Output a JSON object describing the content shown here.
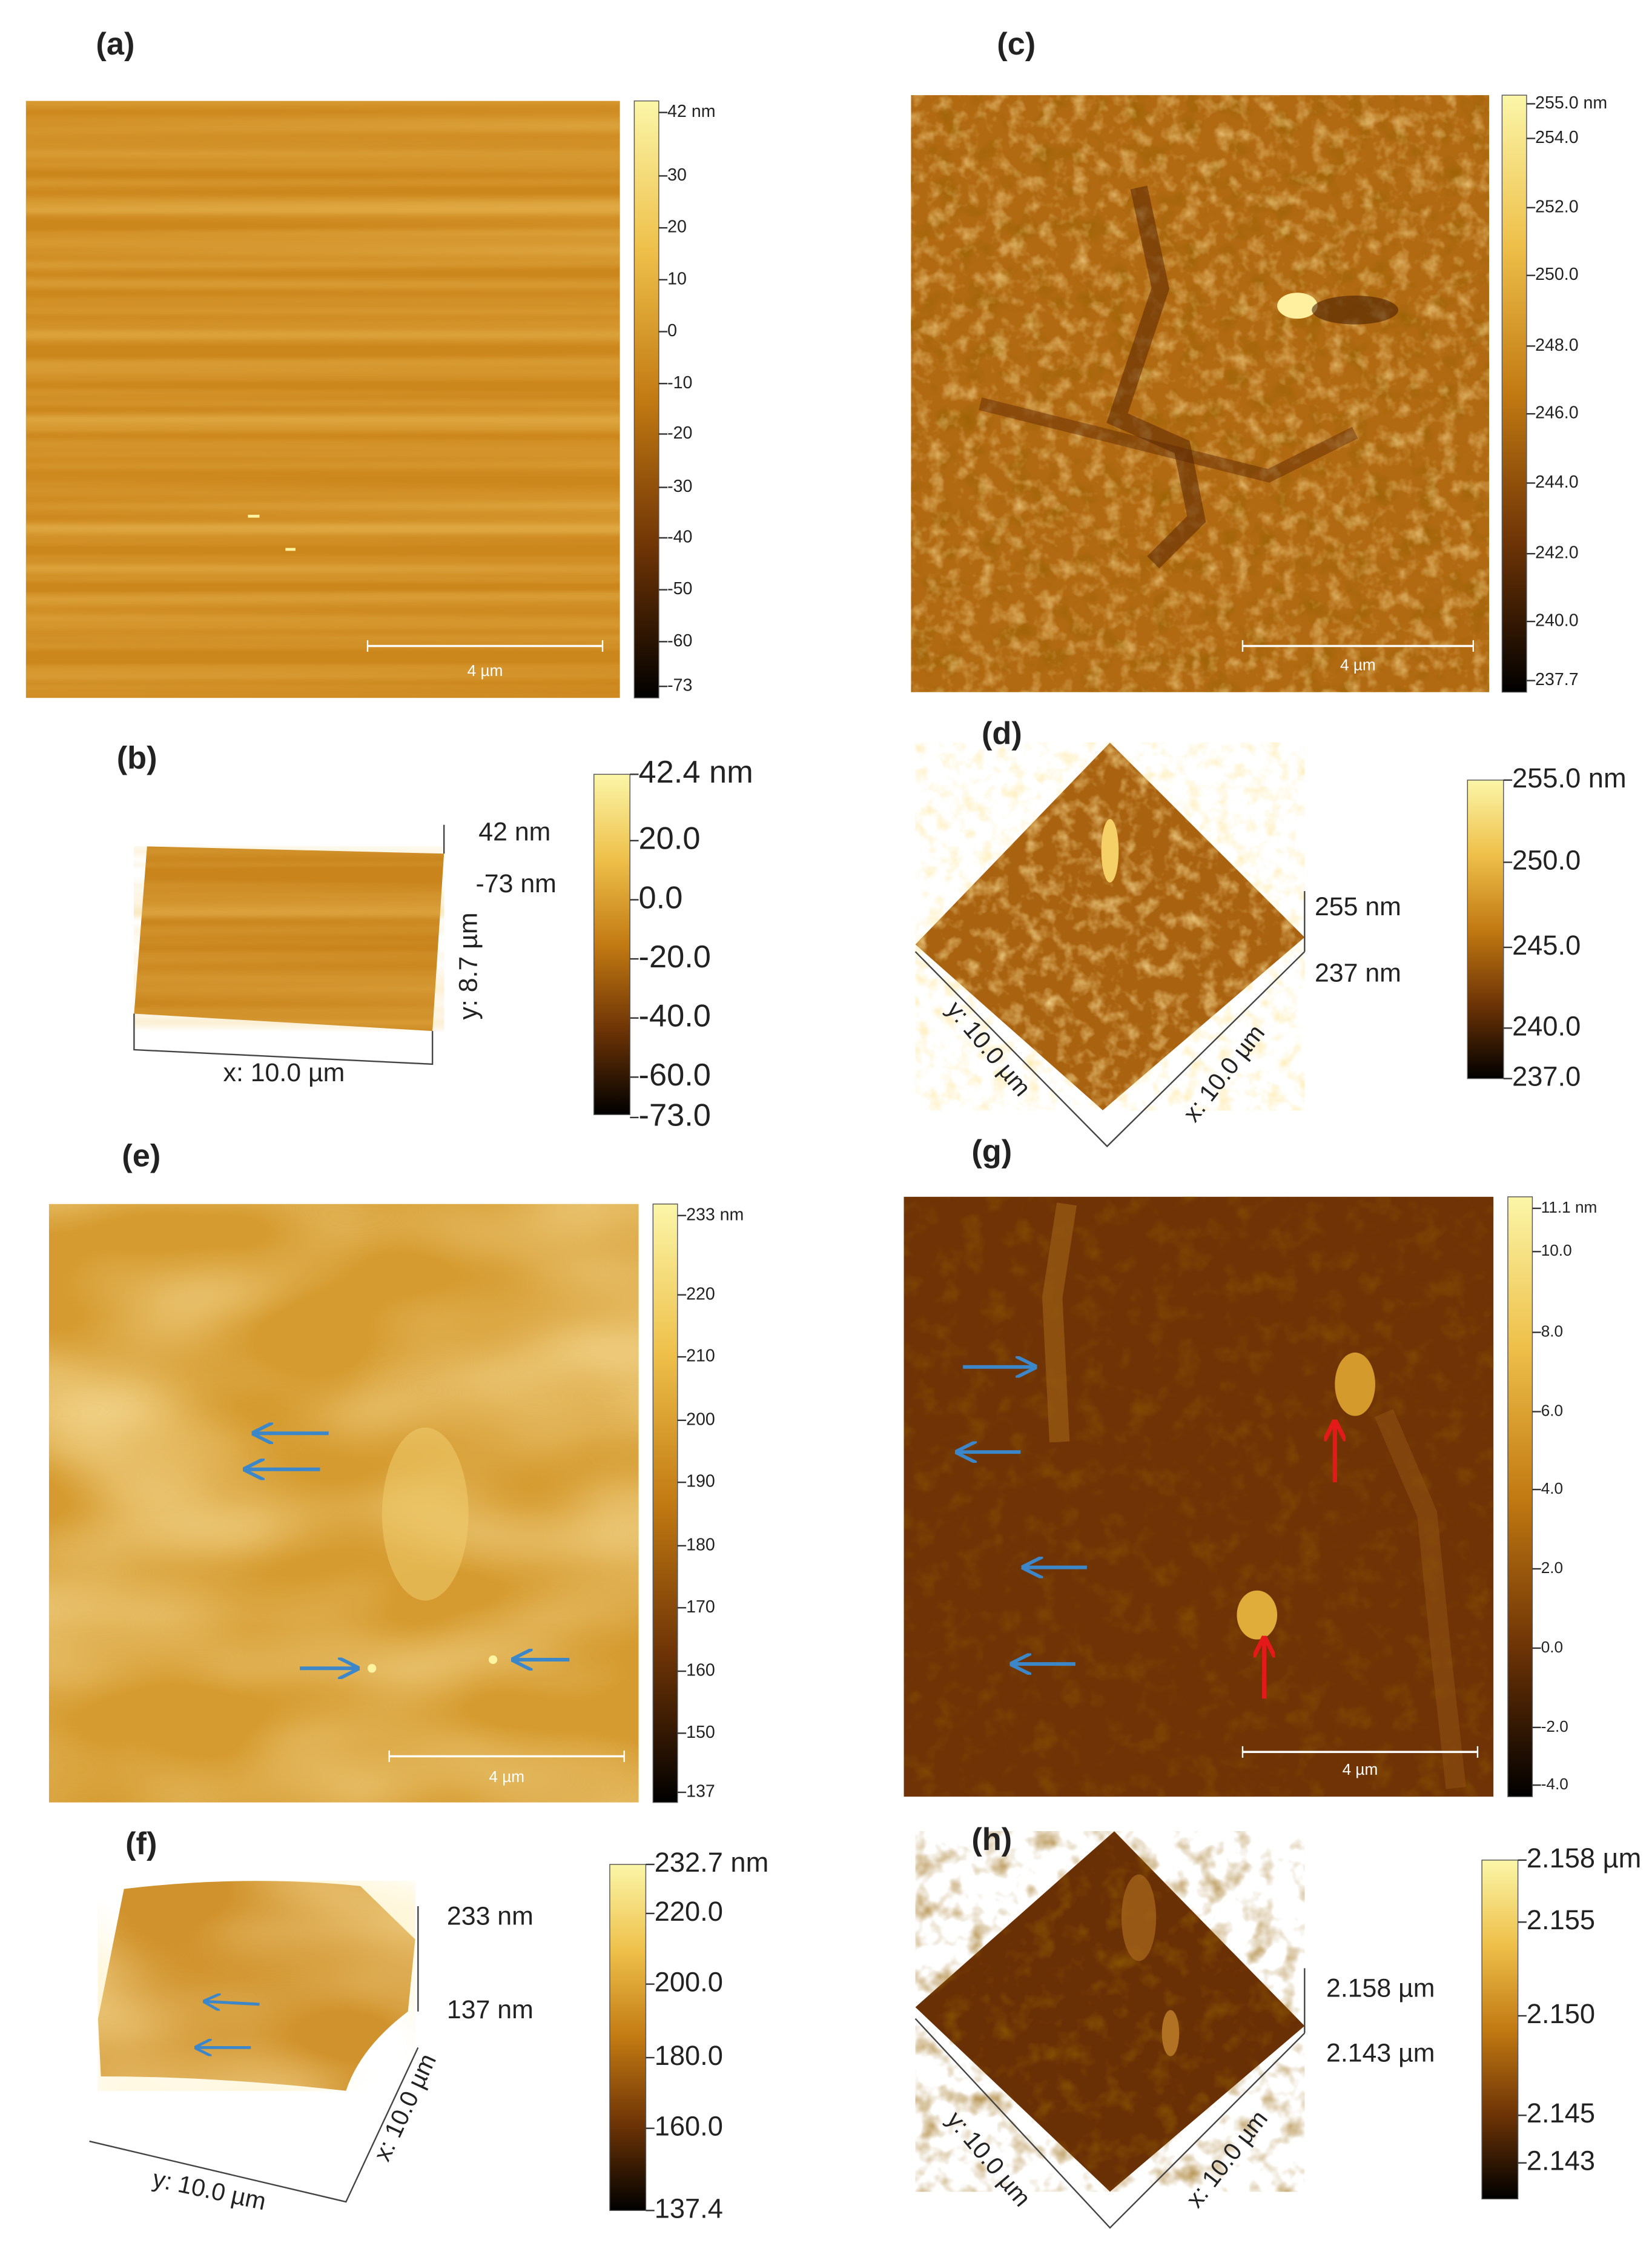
{
  "panels": [
    {
      "label": "(a)",
      "colorbar": [
        "42 nm",
        "30",
        "20",
        "10",
        "0",
        "-10",
        "-20",
        "-30",
        "-40",
        "-50",
        "-60",
        "-73"
      ],
      "scale_bar": "4 µm"
    },
    {
      "label": "(b)",
      "colorbar": [
        "42.4 nm",
        "20.0",
        "0.0",
        "-20.0",
        "-40.0",
        "-60.0",
        "-73.0"
      ],
      "z_top": "42 nm",
      "z_bottom": "-73 nm",
      "y_axis": "y: 8.7 µm",
      "x_axis": "x: 10.0 µm"
    },
    {
      "label": "(c)",
      "colorbar": [
        "255.0 nm",
        "254.0",
        "252.0",
        "250.0",
        "248.0",
        "246.0",
        "244.0",
        "242.0",
        "240.0",
        "237.7"
      ],
      "scale_bar": "4 µm"
    },
    {
      "label": "(d)",
      "colorbar": [
        "255.0 nm",
        "250.0",
        "245.0",
        "240.0",
        "237.0"
      ],
      "z_top": "255 nm",
      "z_bottom": "237 nm",
      "y_axis": "y: 10.0 µm",
      "x_axis": "x: 10.0 µm"
    },
    {
      "label": "(e)",
      "colorbar": [
        "233 nm",
        "220",
        "210",
        "200",
        "190",
        "180",
        "170",
        "160",
        "150",
        "137"
      ],
      "scale_bar": "4 µm"
    },
    {
      "label": "(f)",
      "colorbar": [
        "232.7 nm",
        "220.0",
        "200.0",
        "180.0",
        "160.0",
        "137.4"
      ],
      "z_top": "233 nm",
      "z_bottom": "137 nm",
      "y_axis": "y: 10.0 µm",
      "x_axis": "x: 10.0 µm"
    },
    {
      "label": "(g)",
      "colorbar": [
        "11.1 nm",
        "10.0",
        "8.0",
        "6.0",
        "4.0",
        "2.0",
        "0.0",
        "-2.0",
        "-4.0"
      ],
      "scale_bar": "4 µm"
    },
    {
      "label": "(h)",
      "colorbar": [
        "2.158 µm",
        "2.155",
        "2.150",
        "2.145",
        "2.143"
      ],
      "z_top": "2.158 µm",
      "z_bottom": "2.143 µm",
      "y_axis": "y: 10.0 µm",
      "x_axis": "x: 10.0 µm"
    }
  ]
}
